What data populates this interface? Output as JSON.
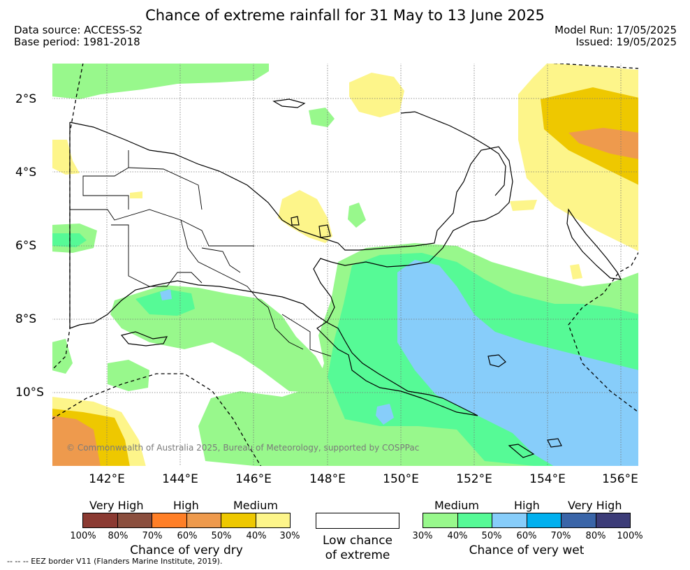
{
  "title": "Chance of extreme rainfall for 31 May to 13 June 2025",
  "data_source": "Data source: ACCESS-S2",
  "base_period": "Base period: 1981-2018",
  "model_run": "Model Run: 17/05/2025",
  "issued": "Issued: 19/05/2025",
  "lat_labels": [
    "2°S",
    "4°S",
    "6°S",
    "8°S",
    "10°S"
  ],
  "lon_labels": [
    "142°E",
    "144°E",
    "146°E",
    "148°E",
    "150°E",
    "152°E",
    "154°E",
    "156°E"
  ],
  "copyright": "© Commonwealth of Australia 2025, Bureau of Meteorology, supported by COSPPac",
  "dry_legend": {
    "categories": [
      "Very High",
      "High",
      "Medium"
    ],
    "ticks": [
      "100%",
      "80%",
      "70%",
      "60%",
      "50%",
      "40%",
      "30%"
    ],
    "colors": [
      "#8b3a32",
      "#8b4f3e",
      "#ff7f27",
      "#ee9a4d",
      "#eec800",
      "#fdf58a"
    ],
    "title": "Chance of very dry"
  },
  "low_legend": {
    "line1": "Low chance",
    "line2": "of extreme",
    "color": "#ffffff"
  },
  "wet_legend": {
    "categories": [
      "Medium",
      "High",
      "Very High"
    ],
    "ticks": [
      "30%",
      "40%",
      "50%",
      "60%",
      "70%",
      "80%",
      "100%"
    ],
    "colors": [
      "#98f88c",
      "#56fa96",
      "#87cdfa",
      "#00b0ef",
      "#3a65a8",
      "#3c3c78"
    ],
    "title": "Chance of very wet"
  },
  "footnote": "--  --  -- EEZ border V11 (Flanders Marine Institute, 2019)."
}
